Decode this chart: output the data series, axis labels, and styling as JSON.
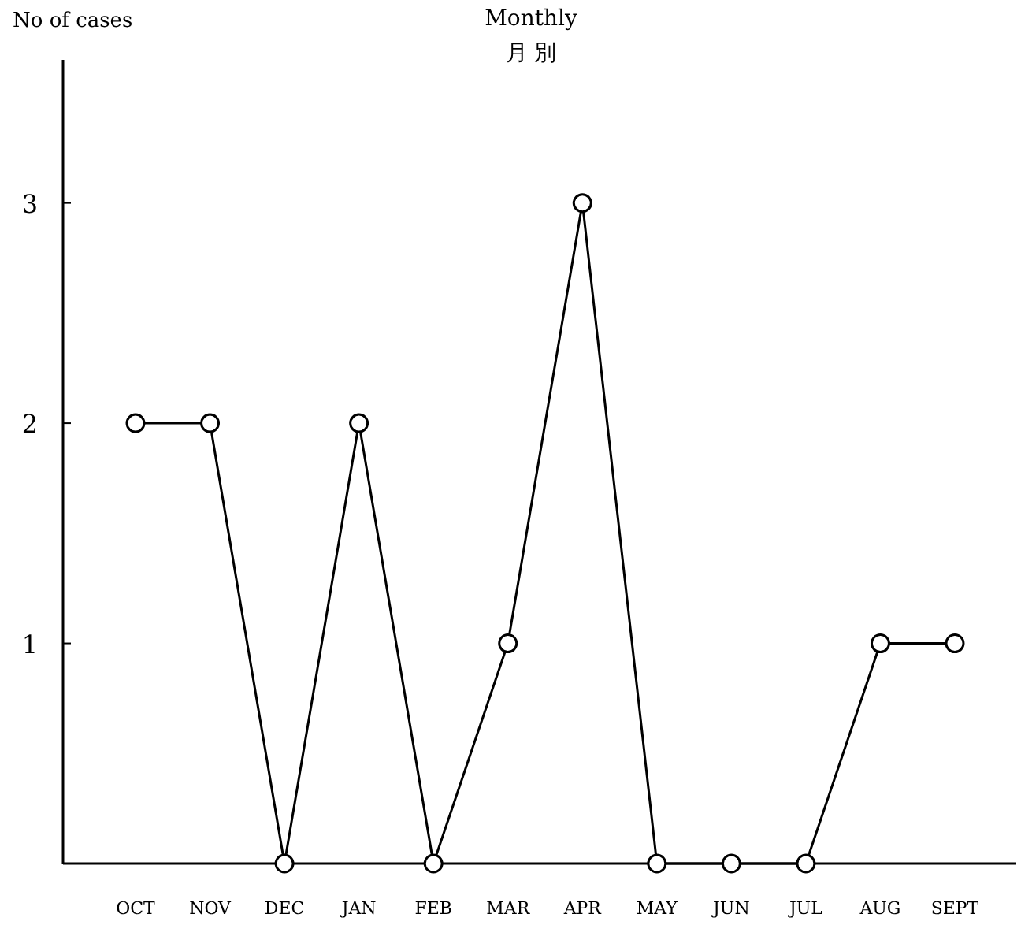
{
  "chart_data": {
    "type": "line",
    "title": "Monthly",
    "subtitle": "月 別",
    "ylabel": "No of cases",
    "categories": [
      "OCT",
      "NOV",
      "DEC",
      "JAN",
      "FEB",
      "MAR",
      "APR",
      "MAY",
      "JUN",
      "JUL",
      "AUG",
      "SEPT"
    ],
    "series": [
      {
        "color": "#000000",
        "values": [
          2,
          2,
          0,
          2,
          0,
          1,
          3,
          0,
          0,
          0,
          1,
          1
        ]
      }
    ],
    "ylim": [
      0,
      3.65
    ],
    "yticks": [
      1,
      2,
      3
    ],
    "marker": "circle",
    "grid": false
  }
}
